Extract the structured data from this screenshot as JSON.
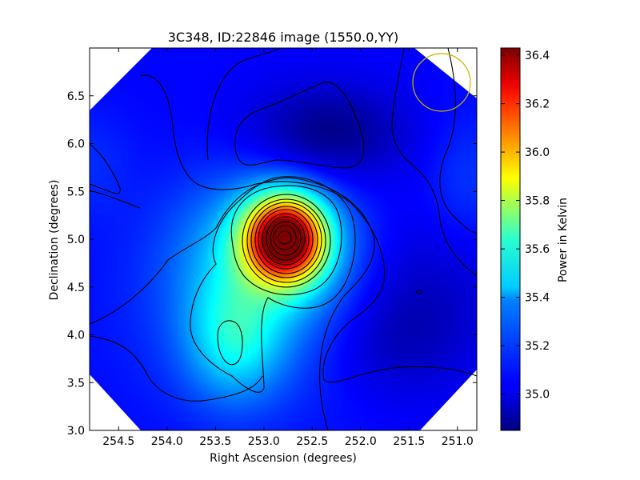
{
  "chart_data": {
    "type": "heatmap",
    "title": "3C348, ID:22846 image (1550.0,YY)",
    "xlabel": "Right Ascension (degrees)",
    "ylabel": "Declination (degrees)",
    "xlim": [
      254.8,
      250.8
    ],
    "ylim": [
      3.0,
      7.0
    ],
    "x_ticks": [
      254.5,
      254.0,
      253.5,
      253.0,
      252.5,
      252.0,
      251.5,
      251.0
    ],
    "x_tick_labels": [
      "254.5",
      "254.0",
      "253.5",
      "253.0",
      "252.5",
      "252.0",
      "251.5",
      "251.0"
    ],
    "y_ticks": [
      3.0,
      3.5,
      4.0,
      4.5,
      5.0,
      5.5,
      6.0,
      6.5
    ],
    "y_tick_labels": [
      "3.0",
      "3.5",
      "4.0",
      "4.5",
      "5.0",
      "5.5",
      "6.0",
      "6.5"
    ],
    "colorbar": {
      "label": "Power in Kelvin",
      "range": [
        34.85,
        36.43
      ],
      "ticks": [
        35.0,
        35.2,
        35.4,
        35.6,
        35.8,
        36.0,
        36.2,
        36.4
      ],
      "tick_labels": [
        "35.0",
        "35.2",
        "35.4",
        "35.6",
        "35.8",
        "36.0",
        "36.2",
        "36.4"
      ],
      "colormap": "jet"
    },
    "features": [
      {
        "type": "peak",
        "ra": 252.78,
        "dec": 5.0,
        "value": 36.43
      },
      {
        "type": "secondary_peak",
        "ra": 253.3,
        "dec": 3.9,
        "value": 35.35
      },
      {
        "type": "minimum",
        "ra": 252.35,
        "dec": 6.1,
        "value": 34.85
      },
      {
        "type": "minimum",
        "ra": 251.4,
        "dec": 4.45,
        "value": 34.95
      }
    ],
    "beam_circle": {
      "ra": 251.15,
      "dec": 6.65,
      "radius_deg": 0.3,
      "color": "#c8b400"
    },
    "grid": false,
    "legend": "none"
  }
}
